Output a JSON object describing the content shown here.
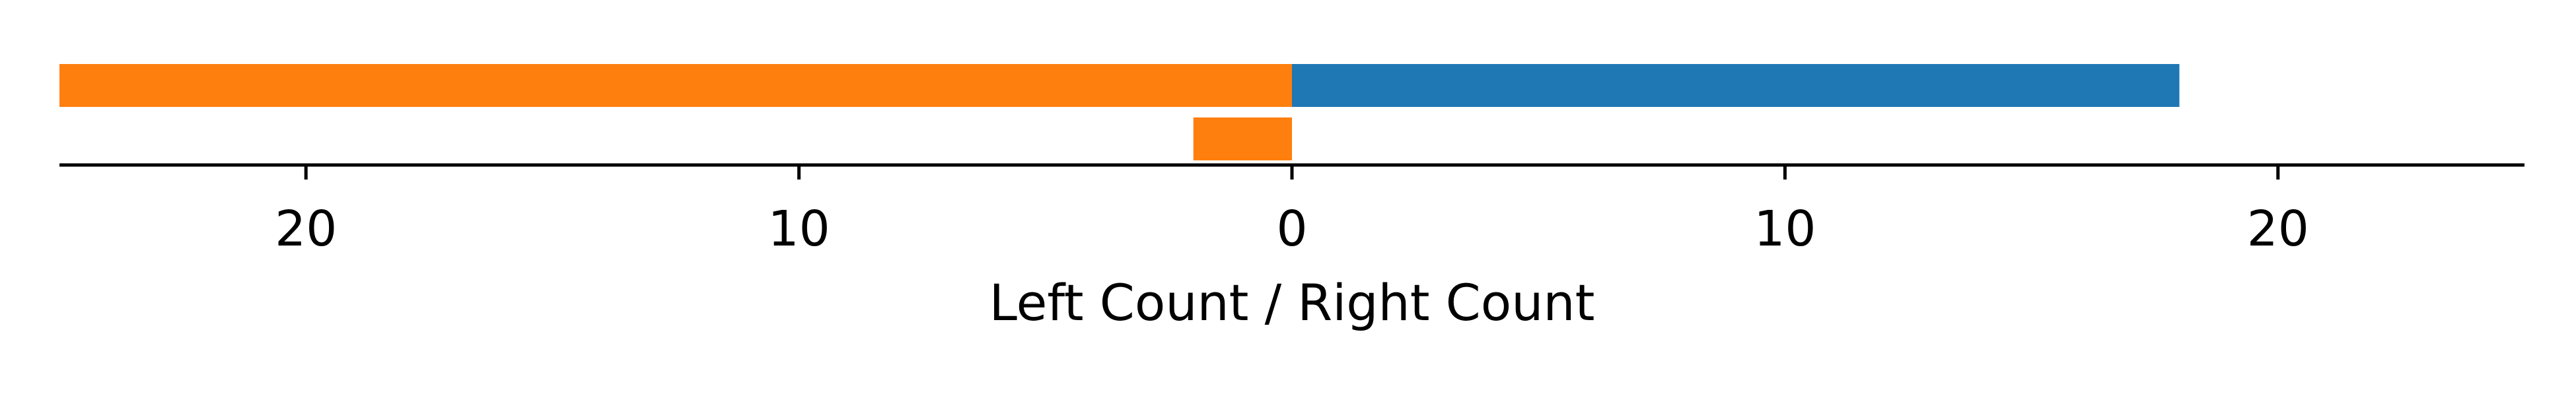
{
  "chart_data": {
    "type": "bar",
    "orientation": "horizontal",
    "layout": "diverging",
    "xlabel": "Left Count / Right Count",
    "xlim": [
      -25,
      25
    ],
    "xticks": [
      -20,
      -10,
      0,
      10,
      20
    ],
    "xtick_labels": [
      "20",
      "10",
      "0",
      "10",
      "20"
    ],
    "grid": false,
    "legend": "none",
    "rows": [
      {
        "left": 25,
        "right": 18
      },
      {
        "left": 2,
        "right": 0
      }
    ],
    "series": [
      {
        "side": "left",
        "color": "#ff7f0e",
        "values": [
          25,
          2
        ]
      },
      {
        "side": "right",
        "color": "#1f77b4",
        "values": [
          18,
          0
        ]
      }
    ]
  }
}
